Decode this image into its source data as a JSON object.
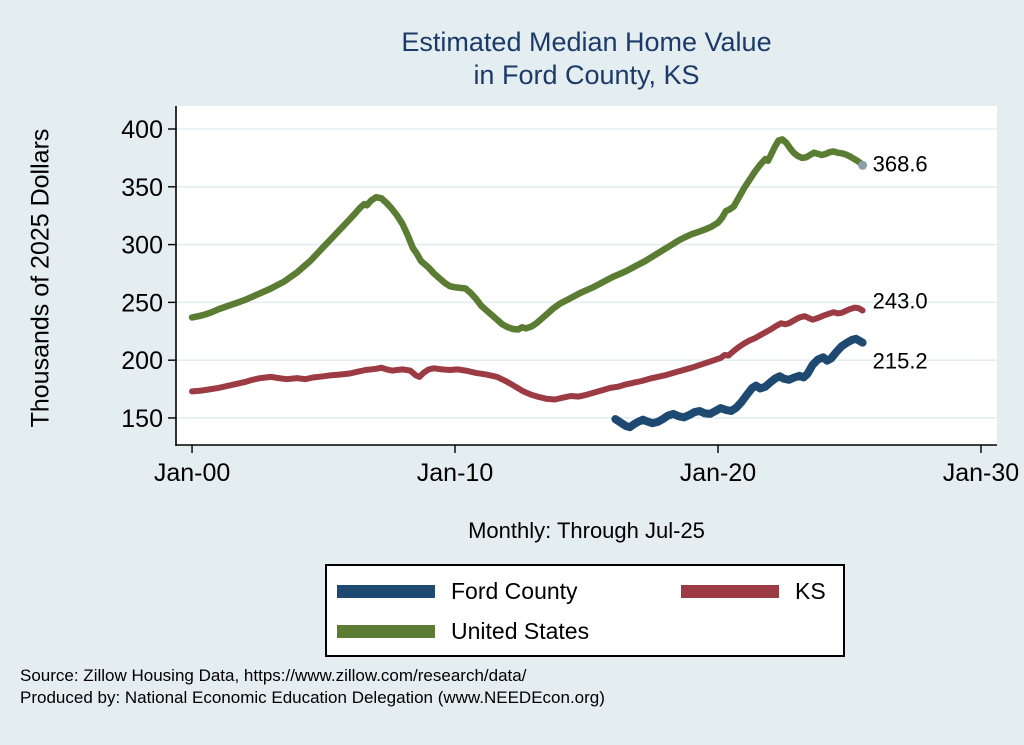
{
  "title": {
    "line1": "Estimated Median Home Value",
    "line2": "in Ford County, KS"
  },
  "axes": {
    "y_title": "Thousands of 2025 Dollars",
    "x_subtitle": "Monthly: Through Jul-25",
    "y_ticks": [
      {
        "value": 150,
        "label": "150"
      },
      {
        "value": 200,
        "label": "200"
      },
      {
        "value": 250,
        "label": "250"
      },
      {
        "value": 300,
        "label": "300"
      },
      {
        "value": 350,
        "label": "350"
      },
      {
        "value": 400,
        "label": "400"
      }
    ],
    "x_ticks": [
      {
        "year": 2000,
        "label": "Jan-00"
      },
      {
        "year": 2010,
        "label": "Jan-10"
      },
      {
        "year": 2020,
        "label": "Jan-20"
      },
      {
        "year": 2030,
        "label": "Jan-30"
      }
    ]
  },
  "legend": {
    "items": [
      {
        "label": "Ford County",
        "color": "#1e4a72"
      },
      {
        "label": "KS",
        "color": "#9c3b43"
      },
      {
        "label": "United States",
        "color": "#5b7d33"
      }
    ]
  },
  "source": {
    "line1": "Source: Zillow Housing Data, https://www.zillow.com/research/data/",
    "line2": "Produced by: National Economic Education Delegation (www.NEEDEcon.org)"
  },
  "colors": {
    "background": "#e4edf0",
    "plot_background": "#ffffff",
    "gridline": "#e2edf0",
    "axis": "#000000",
    "title": "#1b3a69",
    "ford_county": "#1e4a72",
    "ks": "#9c3b43",
    "united_states": "#5b7d33",
    "end_marker": "#87a1a6"
  },
  "chart_data": {
    "type": "line",
    "title": "Estimated Median Home Value in Ford County, KS",
    "xlabel": "Monthly: Through Jul-25",
    "ylabel": "Thousands of 2025 Dollars",
    "x_unit": "decimal year (monthly series)",
    "xlim": [
      1999.39,
      2030.61
    ],
    "ylim": [
      126.6,
      419.9
    ],
    "grid": true,
    "legend_position": "bottom",
    "series": [
      {
        "name": "United States",
        "color": "#5b7d33",
        "width": 6.5,
        "end_label": "368.6",
        "label_dy": -2,
        "end_marker_color": "#87a1a6",
        "points": [
          [
            2000.0,
            237
          ],
          [
            2000.25,
            238
          ],
          [
            2000.5,
            239.5
          ],
          [
            2000.75,
            241.5
          ],
          [
            2001.0,
            244
          ],
          [
            2001.25,
            246
          ],
          [
            2001.5,
            248
          ],
          [
            2001.75,
            250
          ],
          [
            2002.0,
            252
          ],
          [
            2002.25,
            254.5
          ],
          [
            2002.5,
            257
          ],
          [
            2002.75,
            259.5
          ],
          [
            2003.0,
            262
          ],
          [
            2003.25,
            265
          ],
          [
            2003.5,
            268
          ],
          [
            2003.75,
            272
          ],
          [
            2004.0,
            276
          ],
          [
            2004.25,
            281
          ],
          [
            2004.5,
            286
          ],
          [
            2004.75,
            292
          ],
          [
            2005.0,
            298
          ],
          [
            2005.25,
            304
          ],
          [
            2005.5,
            310
          ],
          [
            2005.75,
            316
          ],
          [
            2006.0,
            322
          ],
          [
            2006.2,
            327
          ],
          [
            2006.4,
            332
          ],
          [
            2006.55,
            335
          ],
          [
            2006.65,
            334
          ],
          [
            2006.8,
            338
          ],
          [
            2007.0,
            341
          ],
          [
            2007.2,
            340
          ],
          [
            2007.4,
            336
          ],
          [
            2007.6,
            331
          ],
          [
            2007.8,
            325
          ],
          [
            2008.0,
            318
          ],
          [
            2008.2,
            308
          ],
          [
            2008.4,
            297
          ],
          [
            2008.55,
            292
          ],
          [
            2008.7,
            286
          ],
          [
            2009.0,
            280
          ],
          [
            2009.2,
            275
          ],
          [
            2009.4,
            271
          ],
          [
            2009.6,
            267
          ],
          [
            2009.8,
            264
          ],
          [
            2010.0,
            263
          ],
          [
            2010.2,
            262.5
          ],
          [
            2010.4,
            262
          ],
          [
            2010.6,
            258
          ],
          [
            2010.8,
            253
          ],
          [
            2011.0,
            247
          ],
          [
            2011.2,
            243
          ],
          [
            2011.4,
            239
          ],
          [
            2011.6,
            235
          ],
          [
            2011.8,
            231
          ],
          [
            2012.0,
            228.5
          ],
          [
            2012.2,
            227
          ],
          [
            2012.4,
            226.5
          ],
          [
            2012.55,
            228.5
          ],
          [
            2012.7,
            227.5
          ],
          [
            2012.9,
            229
          ],
          [
            2013.1,
            232
          ],
          [
            2013.3,
            236
          ],
          [
            2013.5,
            240
          ],
          [
            2013.75,
            245
          ],
          [
            2014.0,
            249
          ],
          [
            2014.25,
            252
          ],
          [
            2014.5,
            255
          ],
          [
            2014.75,
            258
          ],
          [
            2015.0,
            260.5
          ],
          [
            2015.25,
            263
          ],
          [
            2015.5,
            266
          ],
          [
            2015.75,
            269
          ],
          [
            2016.0,
            272
          ],
          [
            2016.25,
            274.5
          ],
          [
            2016.5,
            277
          ],
          [
            2016.75,
            280
          ],
          [
            2017.0,
            283
          ],
          [
            2017.25,
            286
          ],
          [
            2017.5,
            289.5
          ],
          [
            2017.75,
            293
          ],
          [
            2018.0,
            296.5
          ],
          [
            2018.25,
            300
          ],
          [
            2018.5,
            303.5
          ],
          [
            2018.75,
            306.5
          ],
          [
            2019.0,
            309
          ],
          [
            2019.25,
            311
          ],
          [
            2019.5,
            313
          ],
          [
            2019.75,
            315.5
          ],
          [
            2020.0,
            319
          ],
          [
            2020.15,
            323
          ],
          [
            2020.3,
            329
          ],
          [
            2020.45,
            330.5
          ],
          [
            2020.6,
            333
          ],
          [
            2020.8,
            341
          ],
          [
            2021.0,
            349
          ],
          [
            2021.2,
            356
          ],
          [
            2021.4,
            363
          ],
          [
            2021.6,
            369
          ],
          [
            2021.8,
            374
          ],
          [
            2021.9,
            372.5
          ],
          [
            2022.0,
            377
          ],
          [
            2022.15,
            384
          ],
          [
            2022.3,
            390
          ],
          [
            2022.45,
            391
          ],
          [
            2022.6,
            388
          ],
          [
            2022.75,
            383
          ],
          [
            2022.9,
            379
          ],
          [
            2023.05,
            376.5
          ],
          [
            2023.2,
            375
          ],
          [
            2023.35,
            375.5
          ],
          [
            2023.5,
            377.5
          ],
          [
            2023.65,
            379.5
          ],
          [
            2023.8,
            378.5
          ],
          [
            2023.95,
            377.5
          ],
          [
            2024.1,
            378.5
          ],
          [
            2024.25,
            380
          ],
          [
            2024.4,
            380.5
          ],
          [
            2024.55,
            379.5
          ],
          [
            2024.7,
            379
          ],
          [
            2024.85,
            378
          ],
          [
            2025.0,
            376.5
          ],
          [
            2025.15,
            374.5
          ],
          [
            2025.3,
            372.5
          ],
          [
            2025.42,
            370.5
          ],
          [
            2025.5,
            368.6
          ]
        ]
      },
      {
        "name": "KS",
        "color": "#9c3b43",
        "width": 6,
        "end_label": "243.0",
        "label_dy": -10,
        "points": [
          [
            2000.0,
            173
          ],
          [
            2000.3,
            173.5
          ],
          [
            2000.6,
            174.5
          ],
          [
            2001.0,
            176
          ],
          [
            2001.3,
            177.5
          ],
          [
            2001.6,
            179
          ],
          [
            2002.0,
            181
          ],
          [
            2002.3,
            183
          ],
          [
            2002.6,
            184.5
          ],
          [
            2003.0,
            185.5
          ],
          [
            2003.3,
            184.5
          ],
          [
            2003.6,
            183.5
          ],
          [
            2004.0,
            184.5
          ],
          [
            2004.3,
            183.5
          ],
          [
            2004.6,
            185
          ],
          [
            2005.0,
            186
          ],
          [
            2005.3,
            187
          ],
          [
            2005.6,
            187.5
          ],
          [
            2006.0,
            188.5
          ],
          [
            2006.3,
            190
          ],
          [
            2006.6,
            191.5
          ],
          [
            2007.0,
            192.5
          ],
          [
            2007.2,
            193.5
          ],
          [
            2007.4,
            192
          ],
          [
            2007.6,
            191
          ],
          [
            2007.8,
            191.5
          ],
          [
            2008.0,
            192
          ],
          [
            2008.3,
            191
          ],
          [
            2008.5,
            187
          ],
          [
            2008.65,
            185.5
          ],
          [
            2008.8,
            189
          ],
          [
            2009.0,
            192
          ],
          [
            2009.2,
            193
          ],
          [
            2009.5,
            192
          ],
          [
            2009.8,
            191.5
          ],
          [
            2010.1,
            192
          ],
          [
            2010.4,
            191
          ],
          [
            2010.8,
            189
          ],
          [
            2011.2,
            187.5
          ],
          [
            2011.6,
            185.5
          ],
          [
            2012.0,
            181
          ],
          [
            2012.3,
            177
          ],
          [
            2012.6,
            173
          ],
          [
            2012.9,
            170
          ],
          [
            2013.2,
            168
          ],
          [
            2013.5,
            166.5
          ],
          [
            2013.8,
            166
          ],
          [
            2014.1,
            167.5
          ],
          [
            2014.4,
            169
          ],
          [
            2014.7,
            168.5
          ],
          [
            2015.0,
            170
          ],
          [
            2015.3,
            172
          ],
          [
            2015.6,
            174
          ],
          [
            2015.9,
            176
          ],
          [
            2016.2,
            177
          ],
          [
            2016.5,
            179
          ],
          [
            2016.8,
            180.5
          ],
          [
            2017.1,
            182
          ],
          [
            2017.4,
            184
          ],
          [
            2017.7,
            185.5
          ],
          [
            2018.0,
            187
          ],
          [
            2018.3,
            189
          ],
          [
            2018.6,
            191
          ],
          [
            2019.0,
            193.5
          ],
          [
            2019.4,
            196.5
          ],
          [
            2019.8,
            199.5
          ],
          [
            2020.1,
            202
          ],
          [
            2020.25,
            204.5
          ],
          [
            2020.4,
            204
          ],
          [
            2020.6,
            208
          ],
          [
            2020.8,
            211.5
          ],
          [
            2021.0,
            214.5
          ],
          [
            2021.2,
            217
          ],
          [
            2021.4,
            219
          ],
          [
            2021.6,
            221.5
          ],
          [
            2021.8,
            224
          ],
          [
            2022.0,
            226.5
          ],
          [
            2022.2,
            229.5
          ],
          [
            2022.4,
            232
          ],
          [
            2022.55,
            231
          ],
          [
            2022.7,
            232
          ],
          [
            2022.9,
            234.5
          ],
          [
            2023.1,
            237
          ],
          [
            2023.3,
            238
          ],
          [
            2023.45,
            236.5
          ],
          [
            2023.6,
            235
          ],
          [
            2023.8,
            236.5
          ],
          [
            2024.0,
            238.5
          ],
          [
            2024.2,
            240
          ],
          [
            2024.4,
            241.5
          ],
          [
            2024.55,
            240.5
          ],
          [
            2024.7,
            241
          ],
          [
            2024.85,
            242.5
          ],
          [
            2025.0,
            244
          ],
          [
            2025.2,
            245.5
          ],
          [
            2025.35,
            245
          ],
          [
            2025.5,
            243.0
          ]
        ]
      },
      {
        "name": "Ford County",
        "color": "#1e4a72",
        "width": 8,
        "end_label": "215.2",
        "label_dy": 18,
        "points": [
          [
            2016.1,
            149
          ],
          [
            2016.3,
            146
          ],
          [
            2016.5,
            143
          ],
          [
            2016.65,
            142
          ],
          [
            2016.8,
            144.5
          ],
          [
            2017.0,
            147
          ],
          [
            2017.15,
            148.5
          ],
          [
            2017.3,
            147
          ],
          [
            2017.5,
            145.5
          ],
          [
            2017.7,
            146.5
          ],
          [
            2017.9,
            149
          ],
          [
            2018.1,
            152
          ],
          [
            2018.3,
            153.5
          ],
          [
            2018.5,
            151.5
          ],
          [
            2018.7,
            150.5
          ],
          [
            2018.9,
            152.5
          ],
          [
            2019.1,
            155
          ],
          [
            2019.3,
            156
          ],
          [
            2019.5,
            154
          ],
          [
            2019.7,
            153.5
          ],
          [
            2019.9,
            156
          ],
          [
            2020.1,
            158.5
          ],
          [
            2020.3,
            157
          ],
          [
            2020.5,
            156
          ],
          [
            2020.7,
            159
          ],
          [
            2020.9,
            164
          ],
          [
            2021.1,
            170
          ],
          [
            2021.3,
            176
          ],
          [
            2021.45,
            178
          ],
          [
            2021.6,
            175.5
          ],
          [
            2021.8,
            177
          ],
          [
            2022.0,
            181
          ],
          [
            2022.2,
            184.5
          ],
          [
            2022.35,
            186
          ],
          [
            2022.5,
            184
          ],
          [
            2022.7,
            183
          ],
          [
            2022.9,
            185
          ],
          [
            2023.1,
            186.5
          ],
          [
            2023.25,
            185
          ],
          [
            2023.4,
            188
          ],
          [
            2023.6,
            196
          ],
          [
            2023.8,
            200.5
          ],
          [
            2024.0,
            202.5
          ],
          [
            2024.15,
            199.5
          ],
          [
            2024.3,
            201.5
          ],
          [
            2024.5,
            207
          ],
          [
            2024.7,
            212
          ],
          [
            2024.9,
            215
          ],
          [
            2025.1,
            217.5
          ],
          [
            2025.25,
            218.5
          ],
          [
            2025.4,
            216.5
          ],
          [
            2025.5,
            215.2
          ]
        ]
      }
    ]
  }
}
